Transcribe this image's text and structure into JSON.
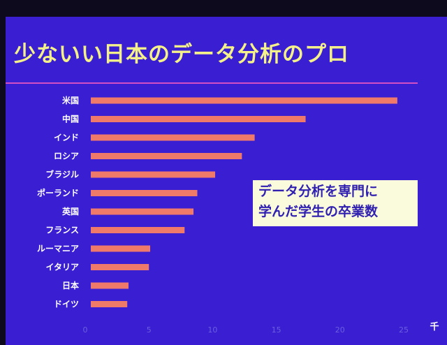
{
  "slide": {
    "title": "少ないい日本のデータ分析のプロ",
    "note_lines": [
      "データ分析を専門に",
      "学んだ学生の卒業数"
    ],
    "colors": {
      "background": "#3a1ed2",
      "bar": "#f07a6a",
      "title": "#f4f18a",
      "note_bg": "#fafadc",
      "note_text": "#3020b0"
    }
  },
  "chart_data": {
    "type": "bar",
    "orientation": "horizontal",
    "categories": [
      "米国",
      "中国",
      "インド",
      "ロシア",
      "ブラジル",
      "ポーランド",
      "英国",
      "フランス",
      "ルーマニア",
      "イタリア",
      "日本",
      "ドイツ"
    ],
    "values": [
      24.5,
      17.3,
      13.3,
      12.3,
      10.2,
      8.8,
      8.5,
      7.8,
      5.1,
      5.0,
      3.4,
      3.3
    ],
    "xlim": [
      0,
      25
    ],
    "xticks": [
      0,
      5,
      10,
      15,
      20,
      25
    ],
    "xlabel": "千",
    "grid": false,
    "legend": "none"
  }
}
